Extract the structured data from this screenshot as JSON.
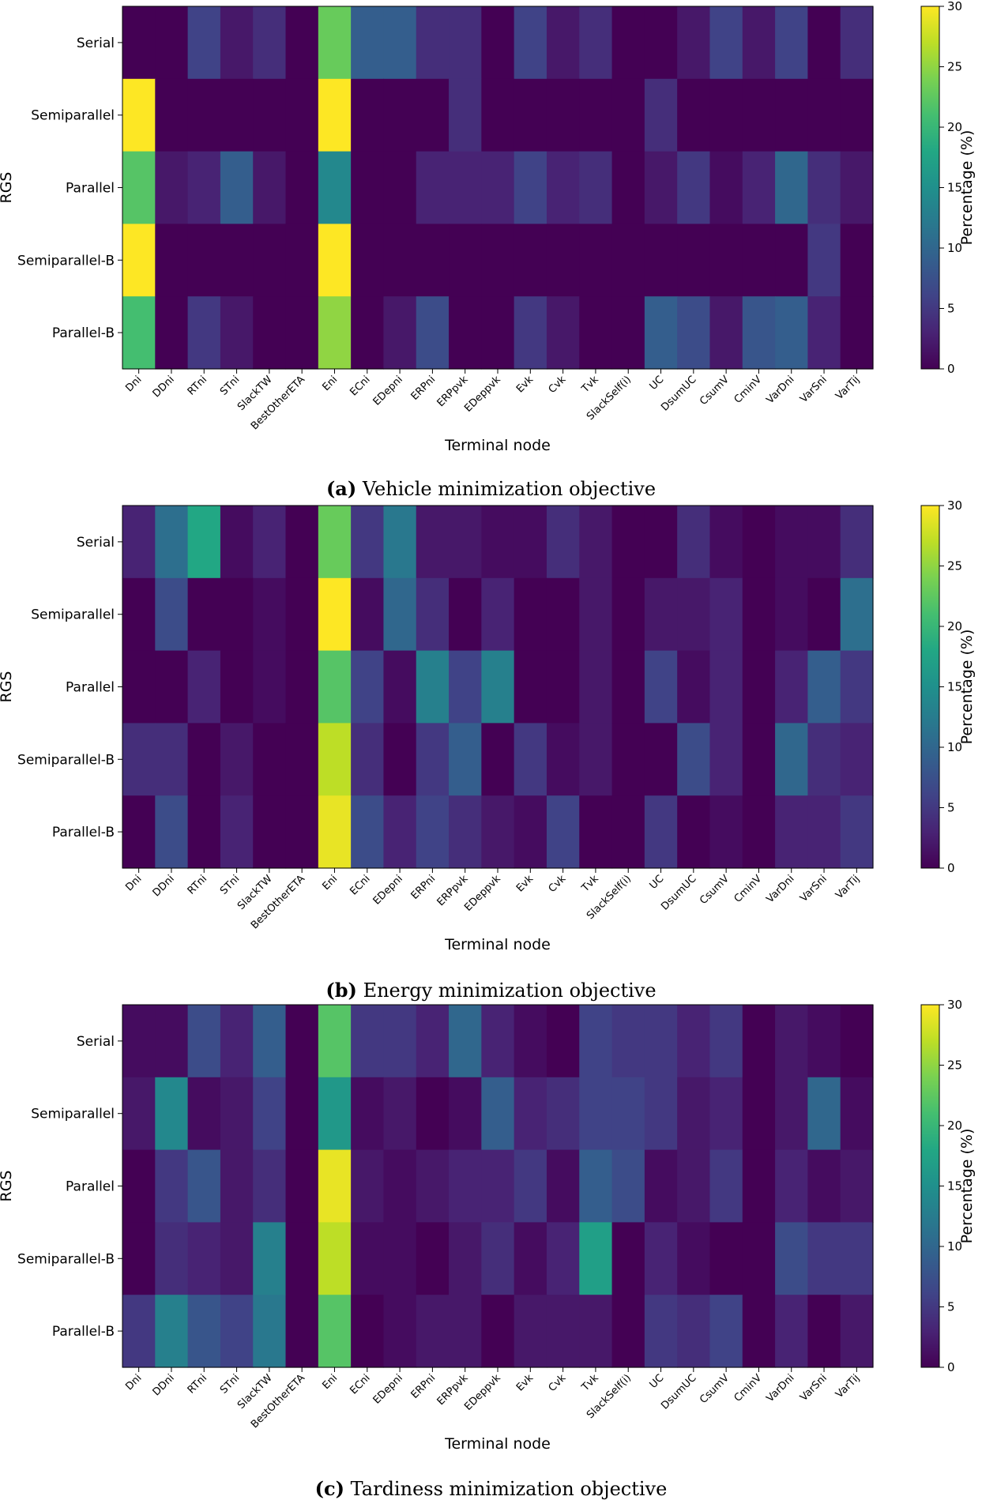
{
  "chart_data": [
    {
      "type": "heatmap",
      "caption_letter": "(a)",
      "caption_text": "Vehicle minimization objective",
      "xlabel": "Terminal node",
      "ylabel": "RGS",
      "colorbar_label": "Percentage (%)",
      "colormap": "viridis",
      "value_range": [
        0,
        30
      ],
      "colorbar_ticks": [
        "0",
        "5",
        "10",
        "15",
        "20",
        "25",
        "30"
      ],
      "rows": [
        "Serial",
        "Semiparallel",
        "Parallel",
        "Semiparallel-B",
        "Parallel-B"
      ],
      "columns": [
        "Dni",
        "DDni",
        "RTni",
        "STni",
        "SlackTW",
        "BestOtherETA",
        "Eni",
        "ECni",
        "EDepni",
        "ERPni",
        "ERPpvk",
        "EDeppvk",
        "Evk",
        "Cvk",
        "Tvk",
        "SlackSelf(i)",
        "UC",
        "DsumUC",
        "CsumV",
        "CminV",
        "VarDni",
        "VarSni",
        "VarTij"
      ],
      "values": [
        [
          0,
          0,
          6,
          2,
          4,
          0,
          23,
          9,
          9,
          4,
          4,
          0,
          6,
          2,
          4,
          0,
          0,
          2,
          6,
          2,
          6,
          0,
          4
        ],
        [
          30,
          0,
          0,
          0,
          0,
          0,
          30,
          0,
          0,
          0,
          4,
          0,
          0,
          0,
          0,
          0,
          4,
          0,
          0,
          0,
          0,
          0,
          0
        ],
        [
          22,
          2,
          3,
          9,
          2,
          0,
          14,
          0,
          0,
          3,
          3,
          3,
          6,
          3,
          4,
          0,
          2,
          5,
          1,
          3,
          10,
          4,
          2
        ],
        [
          30,
          0,
          0,
          0,
          0,
          0,
          30,
          0,
          0,
          0,
          0,
          0,
          0,
          0,
          0,
          0,
          0,
          0,
          0,
          0,
          0,
          5,
          0
        ],
        [
          21,
          0,
          5,
          2,
          0,
          0,
          25,
          0,
          2,
          7,
          0,
          0,
          5,
          2,
          0,
          0,
          9,
          7,
          2,
          8,
          9,
          3,
          0
        ]
      ]
    },
    {
      "type": "heatmap",
      "caption_letter": "(b)",
      "caption_text": "Energy minimization objective",
      "xlabel": "Terminal node",
      "ylabel": "RGS",
      "colorbar_label": "Percentage (%)",
      "colormap": "viridis",
      "value_range": [
        0,
        30
      ],
      "colorbar_ticks": [
        "0",
        "5",
        "10",
        "15",
        "20",
        "25",
        "30"
      ],
      "rows": [
        "Serial",
        "Semiparallel",
        "Parallel",
        "Semiparallel-B",
        "Parallel-B"
      ],
      "columns": [
        "Dni",
        "DDni",
        "RTni",
        "STni",
        "SlackTW",
        "BestOtherETA",
        "Eni",
        "ECni",
        "EDepni",
        "ERPni",
        "ERPpvk",
        "EDeppvk",
        "Evk",
        "Cvk",
        "Tvk",
        "SlackSelf(i)",
        "UC",
        "DsumUC",
        "CsumV",
        "CminV",
        "VarDni",
        "VarSni",
        "VarTij"
      ],
      "values": [
        [
          3,
          11,
          18,
          1,
          3,
          0,
          23,
          5,
          12,
          2,
          2,
          1,
          1,
          4,
          2,
          0,
          0,
          4,
          1,
          0,
          1,
          1,
          4
        ],
        [
          0,
          7,
          0,
          0,
          1,
          0,
          30,
          1,
          10,
          4,
          0,
          3,
          0,
          0,
          2,
          0,
          2,
          2,
          3,
          0,
          1,
          0,
          11
        ],
        [
          0,
          0,
          3,
          0,
          1,
          0,
          22,
          6,
          1,
          13,
          6,
          13,
          0,
          0,
          2,
          0,
          6,
          1,
          3,
          0,
          3,
          9,
          5
        ],
        [
          4,
          4,
          0,
          2,
          0,
          0,
          27,
          4,
          0,
          5,
          9,
          0,
          5,
          1,
          2,
          0,
          0,
          7,
          3,
          0,
          10,
          4,
          3
        ],
        [
          0,
          7,
          0,
          3,
          0,
          0,
          29,
          7,
          3,
          6,
          4,
          2,
          1,
          6,
          0,
          0,
          5,
          0,
          1,
          0,
          3,
          3,
          5
        ]
      ]
    },
    {
      "type": "heatmap",
      "caption_letter": "(c)",
      "caption_text": "Tardiness minimization objective",
      "xlabel": "Terminal node",
      "ylabel": "RGS",
      "colorbar_label": "Percentage (%)",
      "colormap": "viridis",
      "value_range": [
        0,
        30
      ],
      "colorbar_ticks": [
        "0",
        "5",
        "10",
        "15",
        "20",
        "25",
        "30"
      ],
      "rows": [
        "Serial",
        "Semiparallel",
        "Parallel",
        "Semiparallel-B",
        "Parallel-B"
      ],
      "columns": [
        "Dni",
        "DDni",
        "RTni",
        "STni",
        "SlackTW",
        "BestOtherETA",
        "Eni",
        "ECni",
        "EDepni",
        "ERPni",
        "ERPpvk",
        "EDeppvk",
        "Evk",
        "Cvk",
        "Tvk",
        "SlackSelf(i)",
        "UC",
        "DsumUC",
        "CsumV",
        "CminV",
        "VarDni",
        "VarSni",
        "VarTij"
      ],
      "values": [
        [
          1,
          1,
          7,
          3,
          9,
          0,
          22,
          5,
          5,
          3,
          10,
          3,
          1,
          0,
          6,
          5,
          5,
          3,
          5,
          0,
          2,
          1,
          0
        ],
        [
          2,
          14,
          1,
          2,
          6,
          0,
          16,
          1,
          2,
          0,
          1,
          9,
          3,
          4,
          6,
          6,
          5,
          2,
          3,
          0,
          2,
          10,
          1
        ],
        [
          0,
          5,
          8,
          2,
          4,
          0,
          29,
          2,
          1,
          2,
          3,
          3,
          5,
          1,
          9,
          7,
          1,
          2,
          5,
          0,
          3,
          1,
          2
        ],
        [
          0,
          4,
          3,
          2,
          13,
          0,
          27,
          1,
          1,
          0,
          2,
          4,
          1,
          3,
          17,
          0,
          3,
          1,
          0,
          0,
          7,
          5,
          5
        ],
        [
          5,
          13,
          8,
          6,
          12,
          0,
          22,
          0,
          1,
          2,
          2,
          0,
          2,
          2,
          2,
          0,
          5,
          4,
          6,
          0,
          3,
          0,
          2
        ]
      ]
    }
  ]
}
